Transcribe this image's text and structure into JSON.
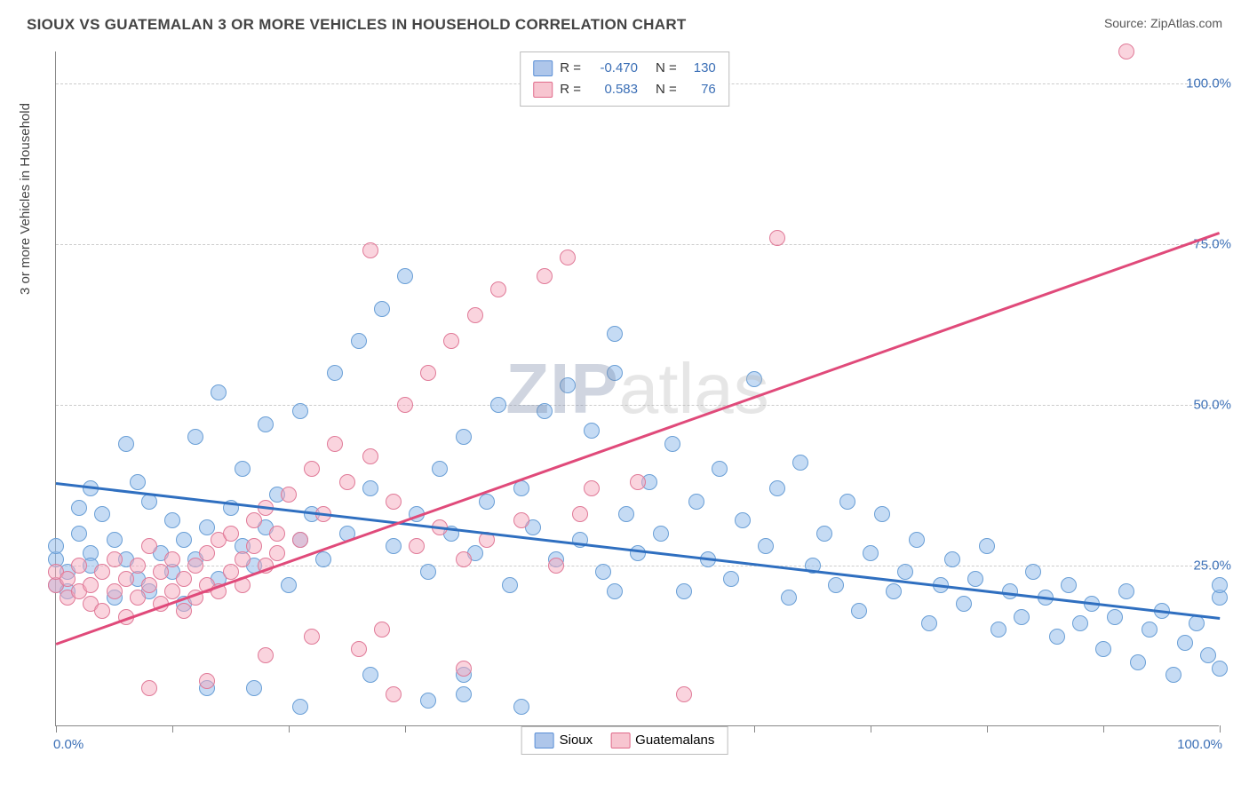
{
  "title": "SIOUX VS GUATEMALAN 3 OR MORE VEHICLES IN HOUSEHOLD CORRELATION CHART",
  "source_prefix": "Source: ",
  "source_name": "ZipAtlas.com",
  "y_axis_title": "3 or more Vehicles in Household",
  "watermark": {
    "part1": "ZIP",
    "part2": "atlas"
  },
  "chart": {
    "type": "scatter",
    "xlim": [
      0,
      100
    ],
    "ylim": [
      0,
      105
    ],
    "x_labels": {
      "min": "0.0%",
      "max": "100.0%"
    },
    "y_ticks": [
      {
        "value": 25,
        "label": "25.0%"
      },
      {
        "value": 50,
        "label": "50.0%"
      },
      {
        "value": 75,
        "label": "75.0%"
      },
      {
        "value": 100,
        "label": "100.0%"
      }
    ],
    "x_tick_count": 11,
    "gridline_color": "#cccccc",
    "axis_color": "#888888",
    "background_color": "#ffffff",
    "marker_radius": 9,
    "marker_opacity": 0.55,
    "trend_line_width": 2.5
  },
  "legend_top": {
    "rows": [
      {
        "swatch_fill": "rgba(120,160,220,0.6)",
        "swatch_border": "#5a8fd6",
        "r_label": "R =",
        "r_value": "-0.470",
        "n_label": "N =",
        "n_value": "130"
      },
      {
        "swatch_fill": "rgba(240,150,170,0.55)",
        "swatch_border": "#e06a8a",
        "r_label": "R =",
        "r_value": "0.583",
        "n_label": "N =",
        "n_value": "76"
      }
    ]
  },
  "legend_bottom": {
    "items": [
      {
        "swatch_fill": "rgba(120,160,220,0.6)",
        "swatch_border": "#5a8fd6",
        "label": "Sioux"
      },
      {
        "swatch_fill": "rgba(240,150,170,0.55)",
        "swatch_border": "#e06a8a",
        "label": "Guatemalans"
      }
    ]
  },
  "series": [
    {
      "name": "Sioux",
      "color_fill": "rgba(150,190,235,0.55)",
      "color_stroke": "#6a9fd6",
      "trend": {
        "color": "#2f6fc0",
        "y_at_x0": 38,
        "y_at_x100": 17
      },
      "points": [
        [
          0,
          22
        ],
        [
          0,
          26
        ],
        [
          0,
          28
        ],
        [
          1,
          24
        ],
        [
          1,
          21
        ],
        [
          2,
          34
        ],
        [
          2,
          30
        ],
        [
          3,
          37
        ],
        [
          3,
          27
        ],
        [
          3,
          25
        ],
        [
          4,
          33
        ],
        [
          5,
          20
        ],
        [
          5,
          29
        ],
        [
          6,
          44
        ],
        [
          6,
          26
        ],
        [
          7,
          38
        ],
        [
          7,
          23
        ],
        [
          8,
          35
        ],
        [
          8,
          21
        ],
        [
          9,
          27
        ],
        [
          10,
          24
        ],
        [
          10,
          32
        ],
        [
          11,
          19
        ],
        [
          11,
          29
        ],
        [
          12,
          45
        ],
        [
          12,
          26
        ],
        [
          13,
          31
        ],
        [
          14,
          52
        ],
        [
          14,
          23
        ],
        [
          15,
          34
        ],
        [
          16,
          40
        ],
        [
          16,
          28
        ],
        [
          17,
          25
        ],
        [
          18,
          47
        ],
        [
          18,
          31
        ],
        [
          19,
          36
        ],
        [
          20,
          22
        ],
        [
          21,
          49
        ],
        [
          21,
          29
        ],
        [
          22,
          33
        ],
        [
          23,
          26
        ],
        [
          24,
          55
        ],
        [
          25,
          30
        ],
        [
          26,
          60
        ],
        [
          27,
          37
        ],
        [
          28,
          65
        ],
        [
          29,
          28
        ],
        [
          30,
          70
        ],
        [
          31,
          33
        ],
        [
          32,
          24
        ],
        [
          33,
          40
        ],
        [
          34,
          30
        ],
        [
          35,
          45
        ],
        [
          36,
          27
        ],
        [
          37,
          35
        ],
        [
          38,
          50
        ],
        [
          39,
          22
        ],
        [
          40,
          37
        ],
        [
          41,
          31
        ],
        [
          42,
          49
        ],
        [
          43,
          26
        ],
        [
          44,
          53
        ],
        [
          45,
          29
        ],
        [
          46,
          46
        ],
        [
          47,
          24
        ],
        [
          48,
          55
        ],
        [
          49,
          33
        ],
        [
          50,
          27
        ],
        [
          51,
          38
        ],
        [
          52,
          30
        ],
        [
          53,
          44
        ],
        [
          54,
          21
        ],
        [
          55,
          35
        ],
        [
          56,
          26
        ],
        [
          57,
          40
        ],
        [
          58,
          23
        ],
        [
          59,
          32
        ],
        [
          60,
          54
        ],
        [
          61,
          28
        ],
        [
          62,
          37
        ],
        [
          63,
          20
        ],
        [
          64,
          41
        ],
        [
          65,
          25
        ],
        [
          66,
          30
        ],
        [
          67,
          22
        ],
        [
          68,
          35
        ],
        [
          69,
          18
        ],
        [
          70,
          27
        ],
        [
          71,
          33
        ],
        [
          72,
          21
        ],
        [
          73,
          24
        ],
        [
          74,
          29
        ],
        [
          75,
          16
        ],
        [
          76,
          22
        ],
        [
          77,
          26
        ],
        [
          78,
          19
        ],
        [
          79,
          23
        ],
        [
          80,
          28
        ],
        [
          81,
          15
        ],
        [
          82,
          21
        ],
        [
          83,
          17
        ],
        [
          84,
          24
        ],
        [
          85,
          20
        ],
        [
          86,
          14
        ],
        [
          87,
          22
        ],
        [
          88,
          16
        ],
        [
          89,
          19
        ],
        [
          90,
          12
        ],
        [
          91,
          17
        ],
        [
          92,
          21
        ],
        [
          93,
          10
        ],
        [
          94,
          15
        ],
        [
          95,
          18
        ],
        [
          96,
          8
        ],
        [
          97,
          13
        ],
        [
          98,
          16
        ],
        [
          99,
          11
        ],
        [
          100,
          9
        ],
        [
          100,
          20
        ],
        [
          100,
          22
        ],
        [
          32,
          4
        ],
        [
          21,
          3
        ],
        [
          40,
          3
        ],
        [
          17,
          6
        ],
        [
          13,
          6
        ],
        [
          27,
          8
        ],
        [
          35,
          8
        ],
        [
          48,
          21
        ],
        [
          48,
          61
        ],
        [
          35,
          5
        ]
      ]
    },
    {
      "name": "Guatemalans",
      "color_fill": "rgba(245,170,190,0.5)",
      "color_stroke": "#e07a98",
      "trend": {
        "color": "#e04a7a",
        "y_at_x0": 13,
        "y_at_x100": 77
      },
      "points": [
        [
          0,
          22
        ],
        [
          0,
          24
        ],
        [
          1,
          20
        ],
        [
          1,
          23
        ],
        [
          2,
          21
        ],
        [
          2,
          25
        ],
        [
          3,
          19
        ],
        [
          3,
          22
        ],
        [
          4,
          24
        ],
        [
          4,
          18
        ],
        [
          5,
          26
        ],
        [
          5,
          21
        ],
        [
          6,
          23
        ],
        [
          6,
          17
        ],
        [
          7,
          25
        ],
        [
          7,
          20
        ],
        [
          8,
          22
        ],
        [
          8,
          28
        ],
        [
          9,
          19
        ],
        [
          9,
          24
        ],
        [
          10,
          21
        ],
        [
          10,
          26
        ],
        [
          11,
          18
        ],
        [
          11,
          23
        ],
        [
          12,
          25
        ],
        [
          12,
          20
        ],
        [
          13,
          27
        ],
        [
          13,
          22
        ],
        [
          14,
          29
        ],
        [
          14,
          21
        ],
        [
          15,
          24
        ],
        [
          15,
          30
        ],
        [
          16,
          26
        ],
        [
          16,
          22
        ],
        [
          17,
          28
        ],
        [
          17,
          32
        ],
        [
          18,
          25
        ],
        [
          18,
          34
        ],
        [
          19,
          30
        ],
        [
          19,
          27
        ],
        [
          20,
          36
        ],
        [
          21,
          29
        ],
        [
          22,
          40
        ],
        [
          23,
          33
        ],
        [
          24,
          44
        ],
        [
          25,
          38
        ],
        [
          26,
          12
        ],
        [
          27,
          42
        ],
        [
          28,
          15
        ],
        [
          29,
          35
        ],
        [
          30,
          50
        ],
        [
          31,
          28
        ],
        [
          32,
          55
        ],
        [
          33,
          31
        ],
        [
          34,
          60
        ],
        [
          35,
          26
        ],
        [
          36,
          64
        ],
        [
          37,
          29
        ],
        [
          38,
          68
        ],
        [
          40,
          32
        ],
        [
          42,
          70
        ],
        [
          43,
          25
        ],
        [
          44,
          73
        ],
        [
          45,
          33
        ],
        [
          46,
          37
        ],
        [
          50,
          38
        ],
        [
          27,
          74
        ],
        [
          54,
          5
        ],
        [
          62,
          76
        ],
        [
          35,
          9
        ],
        [
          13,
          7
        ],
        [
          8,
          6
        ],
        [
          18,
          11
        ],
        [
          22,
          14
        ],
        [
          29,
          5
        ],
        [
          92,
          105
        ]
      ]
    }
  ]
}
